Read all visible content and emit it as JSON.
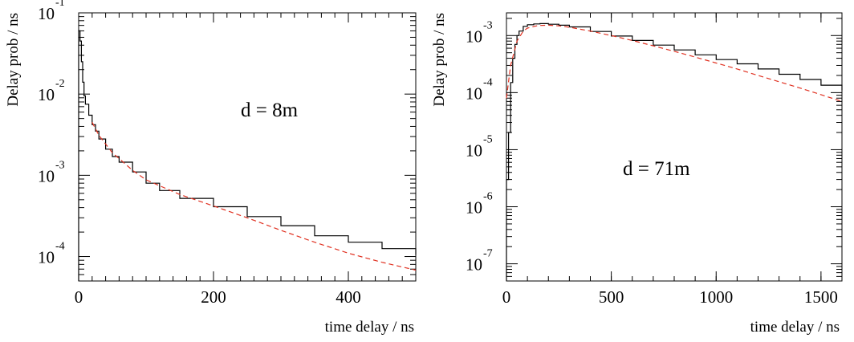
{
  "chart_data": [
    {
      "type": "line",
      "y_scale": "log",
      "xlabel": "time delay / ns",
      "ylabel": "Delay prob / ns",
      "xlim": [
        0,
        500
      ],
      "ylim": [
        5e-05,
        0.1
      ],
      "x_ticks": [
        "0",
        "200",
        "400"
      ],
      "y_tick_base": "10",
      "y_tick_exponents": [
        "-1",
        "-2",
        "-3",
        "-4"
      ],
      "annotation": "d = 8m",
      "series": [
        {
          "style": "histogram",
          "color": "#000000",
          "x": [
            0,
            2,
            4,
            6,
            8,
            10,
            15,
            20,
            25,
            30,
            40,
            50,
            60,
            80,
            100,
            120,
            150,
            200,
            250,
            300,
            350,
            400,
            450,
            500
          ],
          "y": [
            0.06,
            0.045,
            0.025,
            0.014,
            0.0095,
            0.0075,
            0.0055,
            0.0042,
            0.0035,
            0.0028,
            0.0021,
            0.0017,
            0.00145,
            0.0011,
            0.0008,
            0.00065,
            0.00052,
            0.00041,
            0.00031,
            0.00024,
            0.00018,
            0.00015,
            0.000125,
            0.000105
          ]
        },
        {
          "style": "dashed",
          "color": "#e03020",
          "x": [
            20,
            30,
            50,
            80,
            100,
            150,
            200,
            250,
            300,
            350,
            400,
            450,
            500
          ],
          "y": [
            0.0045,
            0.0031,
            0.0019,
            0.00115,
            0.00088,
            0.00058,
            0.00042,
            0.0003,
            0.00021,
            0.00015,
            0.00011,
            8.5e-05,
            6.8e-05
          ]
        }
      ]
    },
    {
      "type": "line",
      "y_scale": "log",
      "xlabel": "time delay / ns",
      "ylabel": "Delay prob / ns",
      "xlim": [
        0,
        1600
      ],
      "ylim": [
        5e-08,
        0.0025
      ],
      "x_ticks": [
        "0",
        "500",
        "1000",
        "1500"
      ],
      "y_tick_base": "10",
      "y_tick_exponents": [
        "-3",
        "-4",
        "-5",
        "-6",
        "-7"
      ],
      "annotation": "d = 71m",
      "series": [
        {
          "style": "histogram",
          "color": "#000000",
          "x": [
            0,
            10,
            20,
            30,
            40,
            50,
            60,
            80,
            100,
            130,
            160,
            200,
            250,
            300,
            400,
            500,
            600,
            700,
            800,
            900,
            1000,
            1100,
            1200,
            1300,
            1400,
            1500,
            1600
          ],
          "y": [
            3e-06,
            2e-05,
            0.00015,
            0.0004,
            0.0007,
            0.001,
            0.0012,
            0.00145,
            0.00155,
            0.0016,
            0.00162,
            0.00158,
            0.00152,
            0.00142,
            0.00118,
            0.00098,
            0.00082,
            0.00068,
            0.00056,
            0.00046,
            0.00038,
            0.00032,
            0.00026,
            0.00021,
            0.00017,
            0.000135,
            0.00011
          ]
        },
        {
          "style": "dashed",
          "color": "#e03020",
          "x": [
            0,
            20,
            50,
            80,
            100,
            150,
            200,
            250,
            300,
            400,
            500,
            600,
            700,
            800,
            900,
            1000,
            1100,
            1200,
            1300,
            1400,
            1500,
            1600
          ],
          "y": [
            8e-05,
            0.0003,
            0.0008,
            0.0012,
            0.00135,
            0.0015,
            0.00152,
            0.00148,
            0.0014,
            0.0012,
            0.001,
            0.00082,
            0.00066,
            0.00053,
            0.00042,
            0.00033,
            0.00026,
            0.0002,
            0.000155,
            0.00012,
            9.2e-05,
            7e-05
          ]
        }
      ]
    }
  ]
}
